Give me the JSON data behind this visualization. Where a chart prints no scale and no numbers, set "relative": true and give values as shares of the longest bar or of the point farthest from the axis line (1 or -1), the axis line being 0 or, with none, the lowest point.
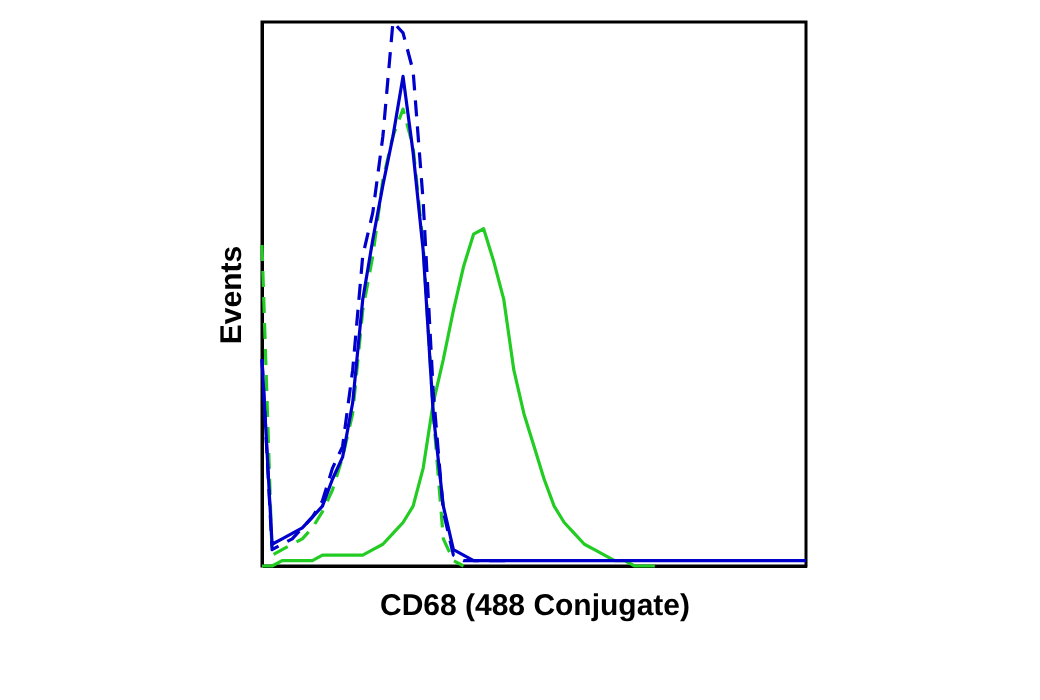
{
  "chart_data": {
    "type": "line",
    "xlabel": "CD68 (488 Conjugate)",
    "ylabel": "Events",
    "relative": true,
    "categories": [
      null,
      null,
      null,
      null,
      null,
      null,
      null,
      null,
      null,
      null,
      null,
      null,
      null,
      null,
      null,
      null,
      null,
      null,
      null,
      null,
      null,
      null,
      null,
      null,
      null,
      null,
      null,
      null,
      null,
      null,
      null,
      null,
      null,
      null,
      null,
      null,
      null,
      null,
      null,
      null,
      null,
      null,
      null,
      null,
      null,
      null,
      null,
      null,
      null,
      null,
      null,
      null,
      null,
      null,
      null
    ],
    "series": [
      {
        "color": "#22cc22",
        "line_style": "dashed",
        "values": [
          0.59,
          0.02,
          0.03,
          0.04,
          0.05,
          0.07,
          0.1,
          0.14,
          0.2,
          0.28,
          0.47,
          0.57,
          0.71,
          0.79,
          0.84,
          0.77,
          0.59,
          0.28,
          0.05,
          0.01,
          0,
          null,
          null,
          null,
          null,
          null,
          null,
          null,
          null,
          null,
          null,
          null,
          null,
          null,
          null,
          null,
          null,
          null,
          null,
          null,
          null,
          null,
          null,
          null,
          null,
          null,
          null,
          null,
          null,
          null,
          null,
          null,
          null,
          null,
          null
        ]
      },
      {
        "color": "#22cc22",
        "line_style": "solid",
        "values": [
          0,
          0,
          0.01,
          0.01,
          0.01,
          0.01,
          0.02,
          0.02,
          0.02,
          0.02,
          0.02,
          0.03,
          0.04,
          0.06,
          0.08,
          0.11,
          0.18,
          0.3,
          0.38,
          0.47,
          0.55,
          0.61,
          0.62,
          0.56,
          0.49,
          0.36,
          0.28,
          0.22,
          0.16,
          0.11,
          0.08,
          0.06,
          0.04,
          0.03,
          0.02,
          0.01,
          0.01,
          0,
          0,
          0,
          null,
          null,
          null,
          null,
          null,
          null,
          null,
          null,
          null,
          null,
          null,
          null,
          null,
          null,
          null
        ]
      },
      {
        "color": "#0000cc",
        "line_style": "dashed",
        "values": [
          0.38,
          0.03,
          0.04,
          0.05,
          0.07,
          0.09,
          0.12,
          0.18,
          0.22,
          0.36,
          0.57,
          0.65,
          0.79,
          1,
          0.98,
          0.91,
          0.67,
          0.32,
          0.1,
          0.02,
          0.01,
          0.01,
          0.01,
          0.01,
          0.01,
          0.01,
          null,
          null,
          null,
          null,
          null,
          null,
          null,
          null,
          null,
          null,
          null,
          null,
          null,
          null,
          null,
          null,
          null,
          null,
          null,
          null,
          null,
          null,
          null,
          null,
          null,
          null,
          null,
          null,
          null
        ]
      },
      {
        "color": "#0000cc",
        "line_style": "solid",
        "values": [
          0.38,
          0.04,
          0.05,
          0.06,
          0.07,
          0.09,
          0.11,
          0.16,
          0.2,
          0.3,
          0.49,
          0.6,
          0.7,
          0.79,
          0.9,
          0.76,
          0.58,
          0.28,
          0.11,
          0.03,
          0.02,
          0.01,
          0.01,
          0.01,
          0.01,
          0.01,
          0.01,
          0.01,
          0.01,
          0.01,
          0.01,
          0.01,
          0.01,
          0.01,
          0.01,
          0.01,
          0.01,
          0.01,
          0.01,
          0.01,
          0.01,
          0.01,
          0.01,
          0.01,
          0.01,
          0.01,
          0.01,
          0.01,
          0.01,
          0.01,
          0.01,
          0.01,
          0.01,
          0.01,
          0.01
        ]
      }
    ]
  }
}
